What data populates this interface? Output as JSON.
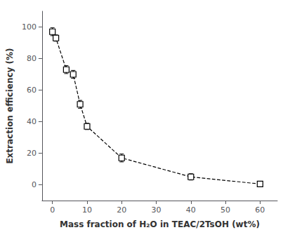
{
  "chart_data": {
    "type": "line",
    "xlabel": "Mass fraction of H₂O in TEAC/2TsOH (wt%)",
    "ylabel": "Extraction efficiency (%)",
    "x": [
      0,
      1,
      4,
      6,
      8,
      10,
      20,
      40,
      60
    ],
    "values": [
      97,
      93,
      73,
      70,
      51,
      37,
      17,
      5,
      0.5
    ],
    "yerr": [
      2.5,
      2.0,
      2.5,
      2.5,
      2.5,
      2.0,
      2.5,
      2.0,
      1.5
    ],
    "color": "#000000",
    "marker": "square",
    "line_style": "dashed",
    "xlim": [
      -3,
      65
    ],
    "ylim": [
      -10,
      110
    ],
    "xticks": [
      0,
      10,
      20,
      30,
      40,
      50,
      60
    ],
    "yticks": [
      0,
      20,
      40,
      60,
      80,
      100
    ],
    "grid": false
  }
}
